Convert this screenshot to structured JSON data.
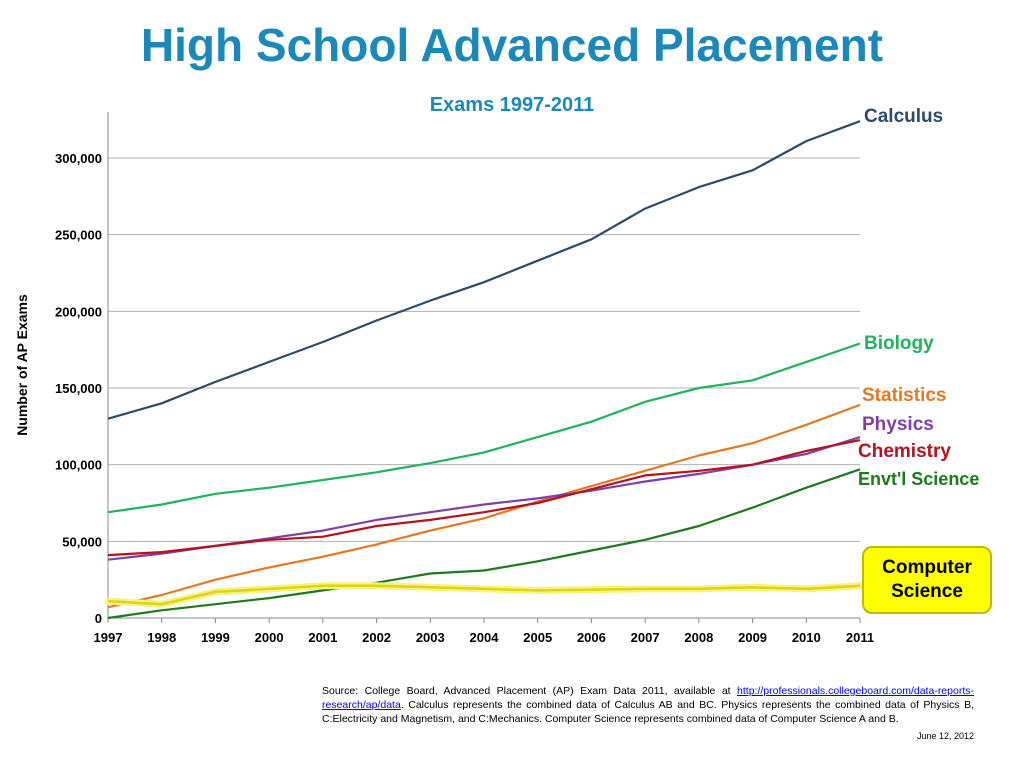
{
  "header": {
    "title": "High School Advanced Placement",
    "subtitle": "Exams 1997-2011"
  },
  "chart_data": {
    "type": "line",
    "title": "High School Advanced Placement",
    "subtitle": "Exams 1997-2011",
    "xlabel": "",
    "ylabel": "Number of AP Exams",
    "x": [
      1997,
      1998,
      1999,
      2000,
      2001,
      2002,
      2003,
      2004,
      2005,
      2006,
      2007,
      2008,
      2009,
      2010,
      2011
    ],
    "ylim": [
      0,
      330000
    ],
    "yticks": [
      0,
      50000,
      100000,
      150000,
      200000,
      250000,
      300000
    ],
    "ytick_labels": [
      "0",
      "50,000",
      "100,000",
      "150,000",
      "200,000",
      "250,000",
      "300,000"
    ],
    "grid": true,
    "series": [
      {
        "name": "Calculus",
        "color": "#2e4a6b",
        "values": [
          130000,
          140000,
          154000,
          167000,
          180000,
          194000,
          207000,
          219000,
          233000,
          247000,
          267000,
          281000,
          292000,
          311000,
          324000
        ]
      },
      {
        "name": "Biology",
        "color": "#1fb35a",
        "values": [
          69000,
          74000,
          81000,
          85000,
          90000,
          95000,
          101000,
          108000,
          118000,
          128000,
          141000,
          150000,
          155000,
          167000,
          179000
        ]
      },
      {
        "name": "Statistics",
        "color": "#e87722",
        "values": [
          7000,
          15000,
          25000,
          33000,
          40000,
          48000,
          57000,
          65000,
          76000,
          86000,
          96000,
          106000,
          114000,
          126000,
          139000
        ]
      },
      {
        "name": "Physics",
        "color": "#7d3fa8",
        "values": [
          38000,
          42000,
          47000,
          52000,
          57000,
          64000,
          69000,
          74000,
          78000,
          83000,
          89000,
          94000,
          100000,
          107000,
          118000
        ]
      },
      {
        "name": "Chemistry",
        "color": "#b3121e",
        "values": [
          41000,
          43000,
          47000,
          51000,
          53000,
          60000,
          64000,
          69000,
          75000,
          84000,
          93000,
          96000,
          100000,
          109000,
          116000
        ]
      },
      {
        "name": "Envt'l Science",
        "color": "#1c7a1c",
        "values": [
          0,
          5000,
          9000,
          13000,
          18000,
          23000,
          29000,
          31000,
          37000,
          44000,
          51000,
          60000,
          72000,
          85000,
          97000
        ]
      },
      {
        "name": "Computer Science",
        "color": "#e8e84a",
        "values": [
          11000,
          9000,
          17000,
          19000,
          21000,
          21000,
          20000,
          19000,
          18000,
          18500,
          19000,
          19000,
          20000,
          19000,
          21000
        ]
      }
    ],
    "annotation": "Computer Science"
  },
  "footer": {
    "source_prefix": "Source: College Board, Advanced Placement (AP) Exam Data 2011, available at ",
    "source_link": "http://professionals.collegeboard.com/data-reports-research/ap/data",
    "source_suffix": ". Calculus represents the combined data of Calculus AB and BC. Physics represents the combined data of Physics B,  C:Electricity and Magnetism, and C:Mechanics. Computer Science represents combined data of Computer Science A and B.",
    "date": "June 12, 2012"
  }
}
